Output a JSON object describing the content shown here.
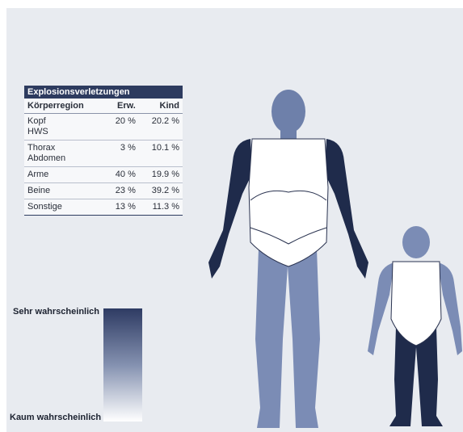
{
  "table": {
    "title": "Explosionsverletzungen",
    "header": [
      "Körperregion",
      "Erw.",
      "Kind"
    ],
    "rows": [
      [
        [
          "Kopf",
          "HWS"
        ],
        "20 %",
        "20.2 %"
      ],
      [
        [
          "Thorax",
          "Abdomen"
        ],
        "3 %",
        "10.1 %"
      ],
      [
        [
          "Arme"
        ],
        "40 %",
        "19.9 %"
      ],
      [
        [
          "Beine"
        ],
        "23 %",
        "39.2 %"
      ],
      [
        [
          "Sonstige"
        ],
        "13 %",
        "11.3 %"
      ]
    ]
  },
  "legend": {
    "high": "Sehr wahrscheinlich",
    "low": "Kaum wahrscheinlich"
  }
}
